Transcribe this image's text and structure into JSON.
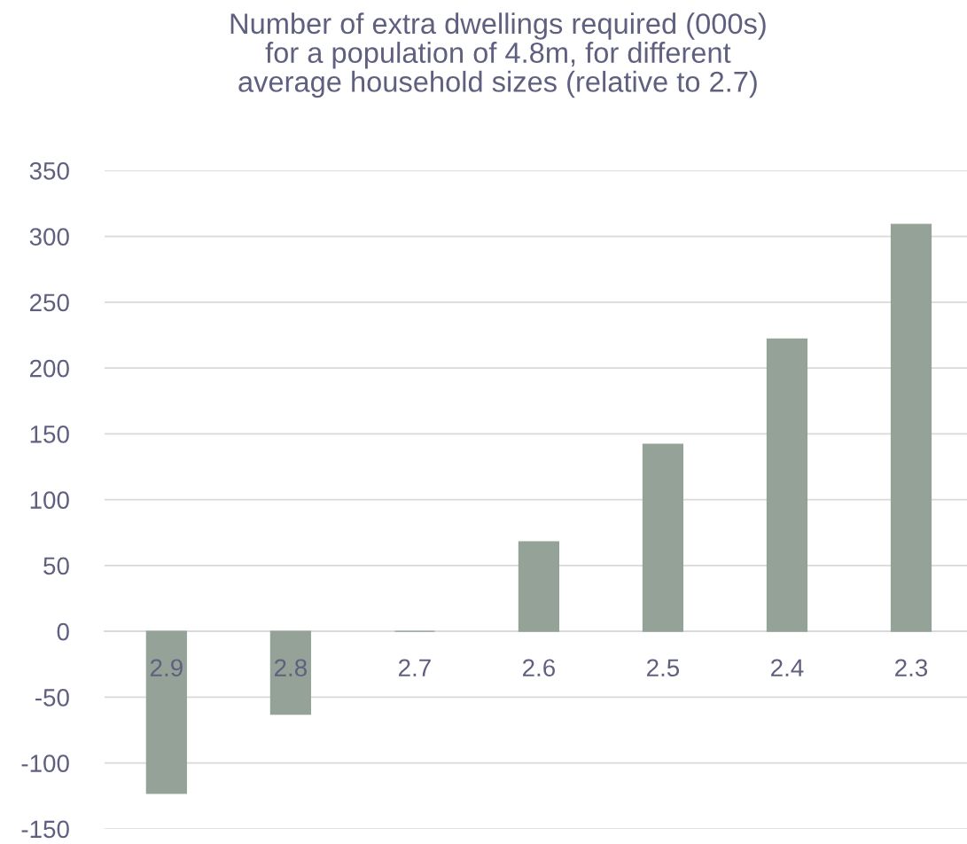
{
  "chart_data": {
    "type": "bar",
    "title": "Number of extra dwellings required (000s)\nfor a population of 4.8m, for different\naverage household sizes (relative to 2.7)",
    "categories": [
      "2.9",
      "2.8",
      "2.7",
      "2.6",
      "2.5",
      "2.4",
      "2.3"
    ],
    "values": [
      -123,
      -63,
      0,
      68,
      142,
      222,
      309
    ],
    "color": "#94a297",
    "ylim": [
      -150,
      350
    ],
    "yticks": [
      -150,
      -100,
      -50,
      0,
      50,
      100,
      150,
      200,
      250,
      300,
      350
    ],
    "grid": "y"
  }
}
